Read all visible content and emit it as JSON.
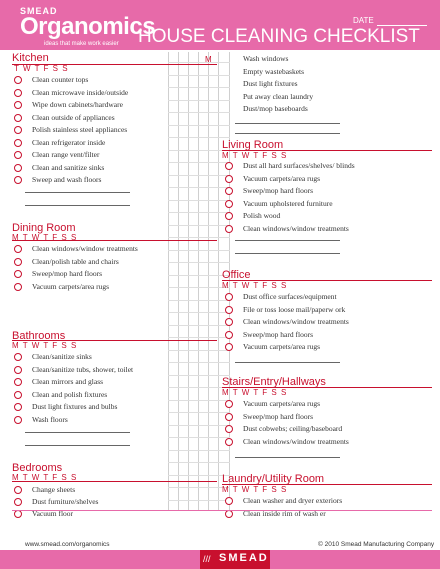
{
  "header": {
    "brand_small": "SMEAD",
    "brand_large": "Organomics",
    "tagline": "ideas that make work easier",
    "date_label": "DATE",
    "title": "HOUSE CLEANING CHECKLIST"
  },
  "kitchen": {
    "title": "Kitchen",
    "days": "T W T F S S",
    "day_m": "M",
    "items": [
      "Clean counter tops",
      "Clean microwave inside/outside",
      "Wipe down cabinets/hardware",
      "Clean outside of appliances",
      "Polish stainless steel appliances",
      "Clean refrigerator inside",
      "Clean range vent/filter",
      "Clean and sanitize sinks",
      "Sweep and wash floors"
    ]
  },
  "dining": {
    "title": "Dining Room",
    "days": "M T W T F S S",
    "items": [
      "Clean windows/window treatments",
      "Clean/polish table and chairs",
      "Sweep/mop hard floors",
      "Vacuum carpets/area rugs"
    ]
  },
  "bathrooms": {
    "title": "Bathrooms",
    "days": "M T W T F S S",
    "items": [
      "Clean/sanitize sinks",
      "Clean/sanitize tubs, shower, toilet",
      "Clean mirrors and glass",
      "Clean and polish fixtures",
      "Dust light fixtures and bulbs",
      "Wash floors"
    ]
  },
  "bedrooms": {
    "title": "Bedrooms",
    "days": "M T W T F S S",
    "items": [
      "Change sheets",
      "Dust furniture/shelves",
      "Vacuum floor"
    ]
  },
  "misc": {
    "items": [
      "Wash windows",
      "Empty wastebaskets",
      "Dust light fixtures",
      "Put away clean laundry",
      "Dust/mop baseboards"
    ]
  },
  "living": {
    "title": "Living Room",
    "days": "M T W T F S S",
    "items": [
      "Dust all hard surfaces/shelves/    blinds",
      "Vacuum carpets/area rugs",
      "Sweep/mop hard floors",
      "Vacuum upholstered furniture",
      "Polish wood",
      "Clean windows/window treatments"
    ]
  },
  "office": {
    "title": "Office",
    "days": "M T W T F S S",
    "items": [
      "Dust office surfaces/equipment",
      "File or toss loose mail/paperw   ork",
      "Clean windows/window treatments",
      "Sweep/mop hard floors",
      "Vacuum carpets/area rugs"
    ]
  },
  "stairs": {
    "title": "Stairs/Entry/Hallways",
    "days": "M T W T F S S",
    "items": [
      "Vacuum carpets/area rugs",
      "Sweep/mop hard floors",
      "Dust cobwebs; ceiling/baseboard",
      "Clean windows/window treatments"
    ]
  },
  "laundry": {
    "title": "Laundry/Utility Room",
    "days": "M T W T F S S",
    "items": [
      "Clean washer and dryer exteriors",
      "Clean inside rim of wash   er"
    ]
  },
  "footer": {
    "url": "www.smead.com/organomics",
    "copyright": "© 2010 Smead Manufacturing Company",
    "logo": "SMEAD"
  },
  "colors": {
    "accent_pink": "#e76aa9",
    "accent_red": "#c8102e"
  }
}
